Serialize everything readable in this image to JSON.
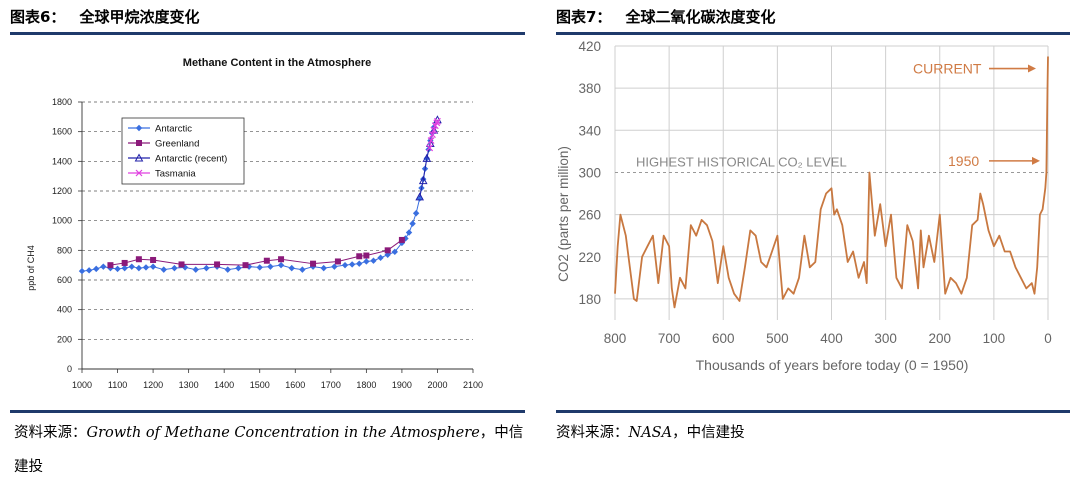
{
  "left_figure": {
    "label": "图表6：",
    "title": "全球甲烷浓度变化",
    "source_prefix": "资料来源：",
    "source_text": "Growth of Methane Concentration in the Atmosphere",
    "source_suffix": "，中信",
    "source_line2": "建投"
  },
  "right_figure": {
    "label": "图表7：",
    "title": "全球二氧化碳浓度变化",
    "source_prefix": "资料来源：",
    "source_text": "NASA",
    "source_suffix": "，中信建投"
  },
  "chart_data": [
    {
      "type": "line",
      "title": "Methane Content in the Atmosphere",
      "xlabel": "",
      "ylabel": "ppb of CH4",
      "xlim": [
        1000,
        2100
      ],
      "ylim": [
        0,
        1800
      ],
      "x_ticks": [
        "1000",
        "1100",
        "1200",
        "1300",
        "1400",
        "1500",
        "1600",
        "1700",
        "1800",
        "1900",
        "2000",
        "2100"
      ],
      "y_ticks": [
        "0",
        "200",
        "400",
        "600",
        "800",
        "1000",
        "1200",
        "1400",
        "1600",
        "1800"
      ],
      "grid": "horizontal dashed",
      "legend_position": "top-left",
      "series": [
        {
          "name": "Antarctic",
          "color": "#3a6fe0",
          "marker": "diamond",
          "x": [
            1000,
            1020,
            1040,
            1060,
            1080,
            1100,
            1120,
            1140,
            1160,
            1180,
            1200,
            1230,
            1260,
            1290,
            1320,
            1350,
            1380,
            1410,
            1440,
            1470,
            1500,
            1530,
            1560,
            1590,
            1620,
            1650,
            1680,
            1710,
            1740,
            1760,
            1780,
            1800,
            1820,
            1840,
            1860,
            1880,
            1900,
            1910,
            1920,
            1930,
            1940,
            1950,
            1955,
            1960,
            1965,
            1970,
            1975,
            1980,
            1985,
            1990
          ],
          "y": [
            660,
            665,
            675,
            690,
            680,
            675,
            680,
            690,
            680,
            685,
            690,
            670,
            680,
            685,
            670,
            680,
            690,
            670,
            680,
            690,
            685,
            690,
            700,
            680,
            670,
            690,
            680,
            690,
            700,
            705,
            710,
            725,
            730,
            750,
            770,
            790,
            850,
            880,
            920,
            980,
            1050,
            1150,
            1220,
            1280,
            1350,
            1420,
            1480,
            1540,
            1590,
            1630
          ]
        },
        {
          "name": "Greenland",
          "color": "#8b1a7a",
          "marker": "square",
          "x": [
            1080,
            1120,
            1160,
            1200,
            1280,
            1380,
            1460,
            1520,
            1560,
            1650,
            1720,
            1780,
            1800,
            1860,
            1900
          ],
          "y": [
            700,
            715,
            740,
            735,
            705,
            705,
            700,
            730,
            740,
            710,
            725,
            760,
            765,
            800,
            870
          ]
        },
        {
          "name": "Antarctic (recent)",
          "color": "#2222aa",
          "marker": "triangle",
          "x": [
            1950,
            1960,
            1970,
            1980,
            1990,
            2000
          ],
          "y": [
            1160,
            1270,
            1420,
            1520,
            1610,
            1680
          ]
        },
        {
          "name": "Tasmania",
          "color": "#e040e0",
          "marker": "x",
          "x": [
            1978,
            1982,
            1986,
            1990,
            1994,
            1998,
            2000
          ],
          "y": [
            1490,
            1540,
            1580,
            1610,
            1640,
            1660,
            1670
          ]
        }
      ]
    },
    {
      "type": "line",
      "title": "",
      "xlabel": "Thousands of years before today (0 = 1950)",
      "ylabel": "CO2 (parts per million)",
      "xlim": [
        800,
        0
      ],
      "ylim": [
        160,
        420
      ],
      "x_ticks": [
        "800",
        "700",
        "600",
        "500",
        "400",
        "300",
        "200",
        "100",
        "0"
      ],
      "y_ticks": [
        "180",
        "220",
        "260",
        "300",
        "340",
        "380",
        "420"
      ],
      "grid": "vertical and horizontal",
      "annotations": [
        {
          "text": "HIGHEST HISTORICAL CO₂ LEVEL",
          "y": 300
        },
        {
          "text": "CURRENT",
          "y": 410
        },
        {
          "text": "1950",
          "y": 311
        }
      ],
      "series": [
        {
          "name": "",
          "color": "#c87840",
          "x": [
            800,
            795,
            790,
            780,
            770,
            765,
            760,
            750,
            740,
            730,
            720,
            710,
            700,
            695,
            690,
            680,
            670,
            660,
            650,
            640,
            630,
            620,
            610,
            600,
            590,
            580,
            570,
            560,
            550,
            540,
            530,
            520,
            510,
            500,
            490,
            480,
            470,
            460,
            450,
            440,
            430,
            420,
            410,
            400,
            395,
            390,
            380,
            370,
            360,
            350,
            340,
            335,
            330,
            320,
            310,
            300,
            290,
            280,
            270,
            260,
            250,
            240,
            235,
            230,
            220,
            210,
            200,
            190,
            180,
            170,
            160,
            150,
            140,
            130,
            125,
            120,
            110,
            100,
            90,
            80,
            70,
            60,
            50,
            40,
            30,
            25,
            20,
            15,
            10,
            5,
            3,
            1,
            0
          ],
          "y": [
            185,
            230,
            260,
            240,
            200,
            180,
            178,
            220,
            230,
            240,
            195,
            240,
            230,
            190,
            172,
            200,
            190,
            250,
            240,
            255,
            250,
            235,
            195,
            230,
            200,
            185,
            178,
            210,
            245,
            240,
            215,
            210,
            225,
            240,
            180,
            190,
            185,
            200,
            240,
            210,
            215,
            265,
            280,
            285,
            260,
            265,
            250,
            215,
            225,
            200,
            215,
            195,
            300,
            240,
            270,
            230,
            260,
            200,
            190,
            250,
            235,
            190,
            245,
            210,
            240,
            215,
            260,
            185,
            200,
            195,
            185,
            200,
            250,
            255,
            280,
            270,
            245,
            230,
            240,
            225,
            225,
            210,
            200,
            190,
            195,
            185,
            210,
            260,
            265,
            285,
            300,
            380,
            410
          ]
        }
      ]
    }
  ]
}
